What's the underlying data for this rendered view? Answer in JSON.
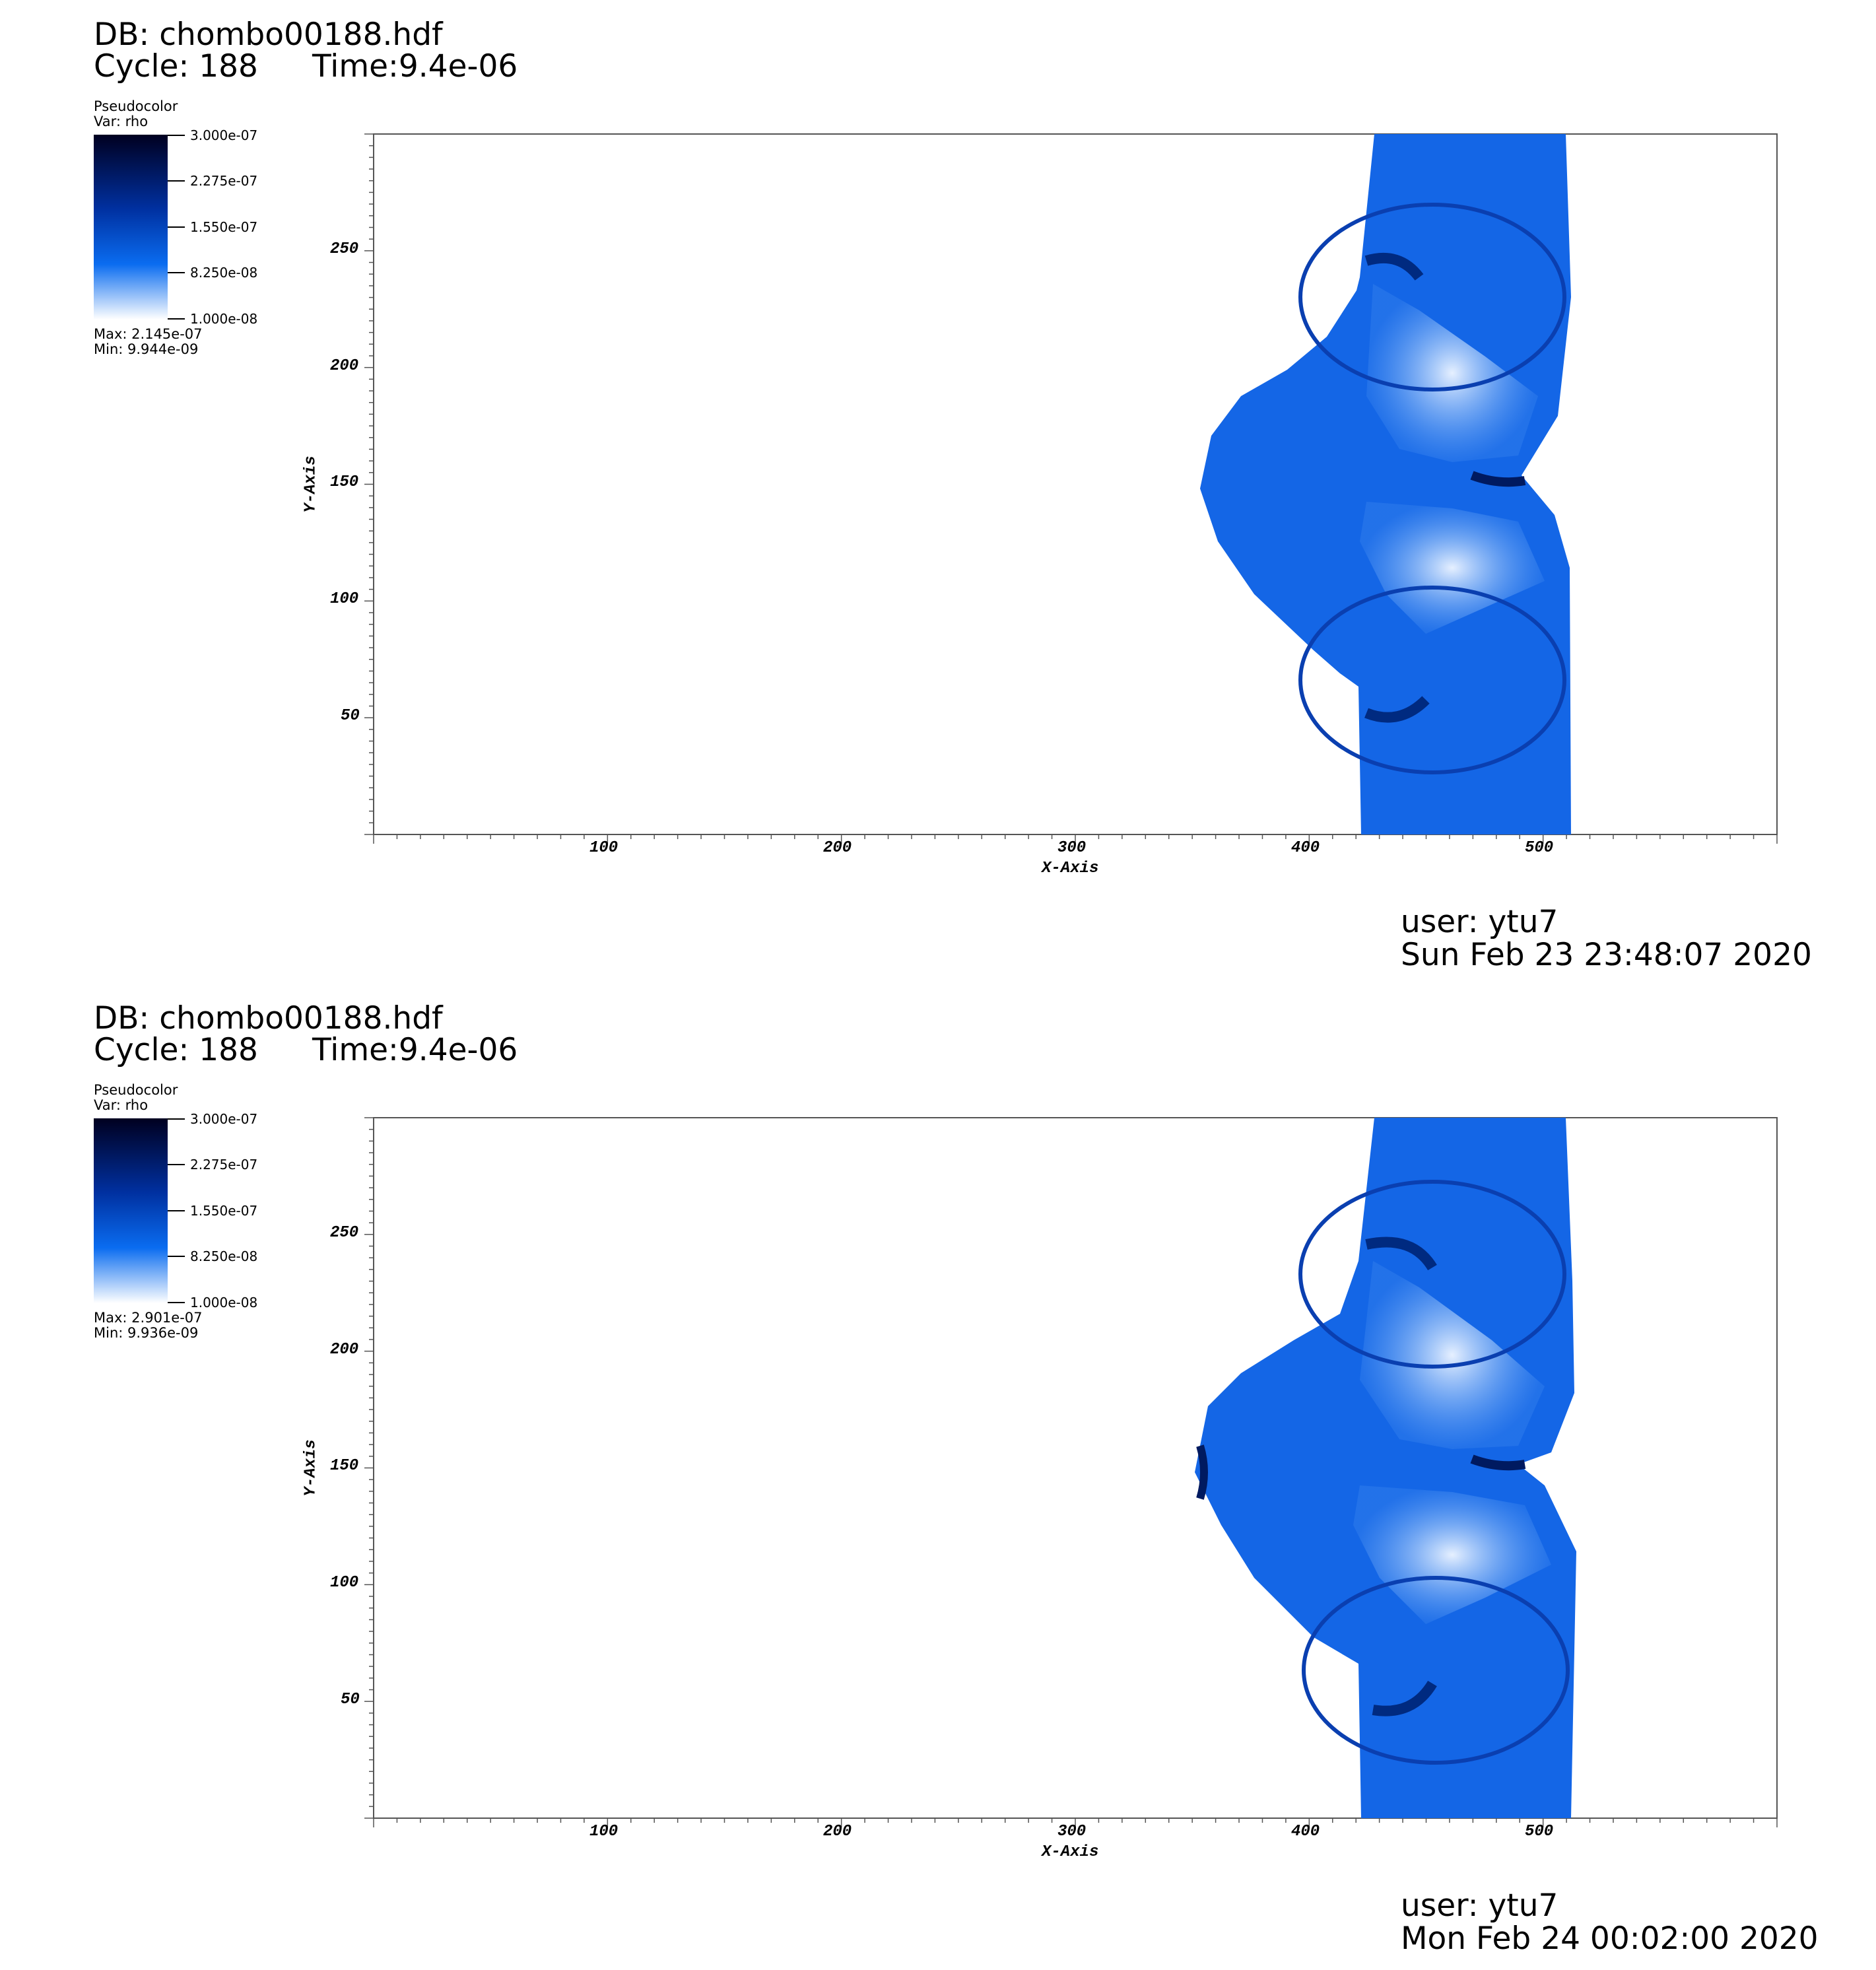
{
  "chart_data": [
    {
      "type": "heatmap",
      "title": "DB: chombo00188.hdf",
      "cycle_label": "Cycle: 188",
      "time_label": "Time:9.4e-06",
      "legend_title": "Pseudocolor",
      "legend_var": "Var: rho",
      "colorbar_ticks": [
        "3.000e-07",
        "2.275e-07",
        "1.550e-07",
        "8.250e-08",
        "1.000e-08"
      ],
      "colorbar_range": [
        1e-08,
        3e-07
      ],
      "max_label": "Max:  2.145e-07",
      "min_label": "Min:  9.944e-09",
      "xlabel": "X-Axis",
      "ylabel": "Y-Axis",
      "xlim": [
        0,
        600
      ],
      "ylim": [
        0,
        300
      ],
      "x_ticks": [
        "100",
        "200",
        "300",
        "400",
        "500"
      ],
      "y_ticks": [
        "250",
        "200",
        "150",
        "100",
        "50"
      ],
      "user_label": "user: ytu7",
      "date_label": "Sun Feb 23 23:48:07 2020",
      "colormap": [
        "#ffffff",
        "#0a6cf0",
        "#0030a0",
        "#000020"
      ]
    },
    {
      "type": "heatmap",
      "title": "DB: chombo00188.hdf",
      "cycle_label": "Cycle: 188",
      "time_label": "Time:9.4e-06",
      "legend_title": "Pseudocolor",
      "legend_var": "Var: rho",
      "colorbar_ticks": [
        "3.000e-07",
        "2.275e-07",
        "1.550e-07",
        "8.250e-08",
        "1.000e-08"
      ],
      "colorbar_range": [
        1e-08,
        3e-07
      ],
      "max_label": "Max:  2.901e-07",
      "min_label": "Min:  9.936e-09",
      "xlabel": "X-Axis",
      "ylabel": "Y-Axis",
      "xlim": [
        0,
        600
      ],
      "ylim": [
        0,
        300
      ],
      "x_ticks": [
        "100",
        "200",
        "300",
        "400",
        "500"
      ],
      "y_ticks": [
        "250",
        "200",
        "150",
        "100",
        "50"
      ],
      "user_label": "user: ytu7",
      "date_label": "Mon Feb 24 00:02:00 2020",
      "colormap": [
        "#ffffff",
        "#0a6cf0",
        "#0030a0",
        "#000020"
      ]
    }
  ]
}
